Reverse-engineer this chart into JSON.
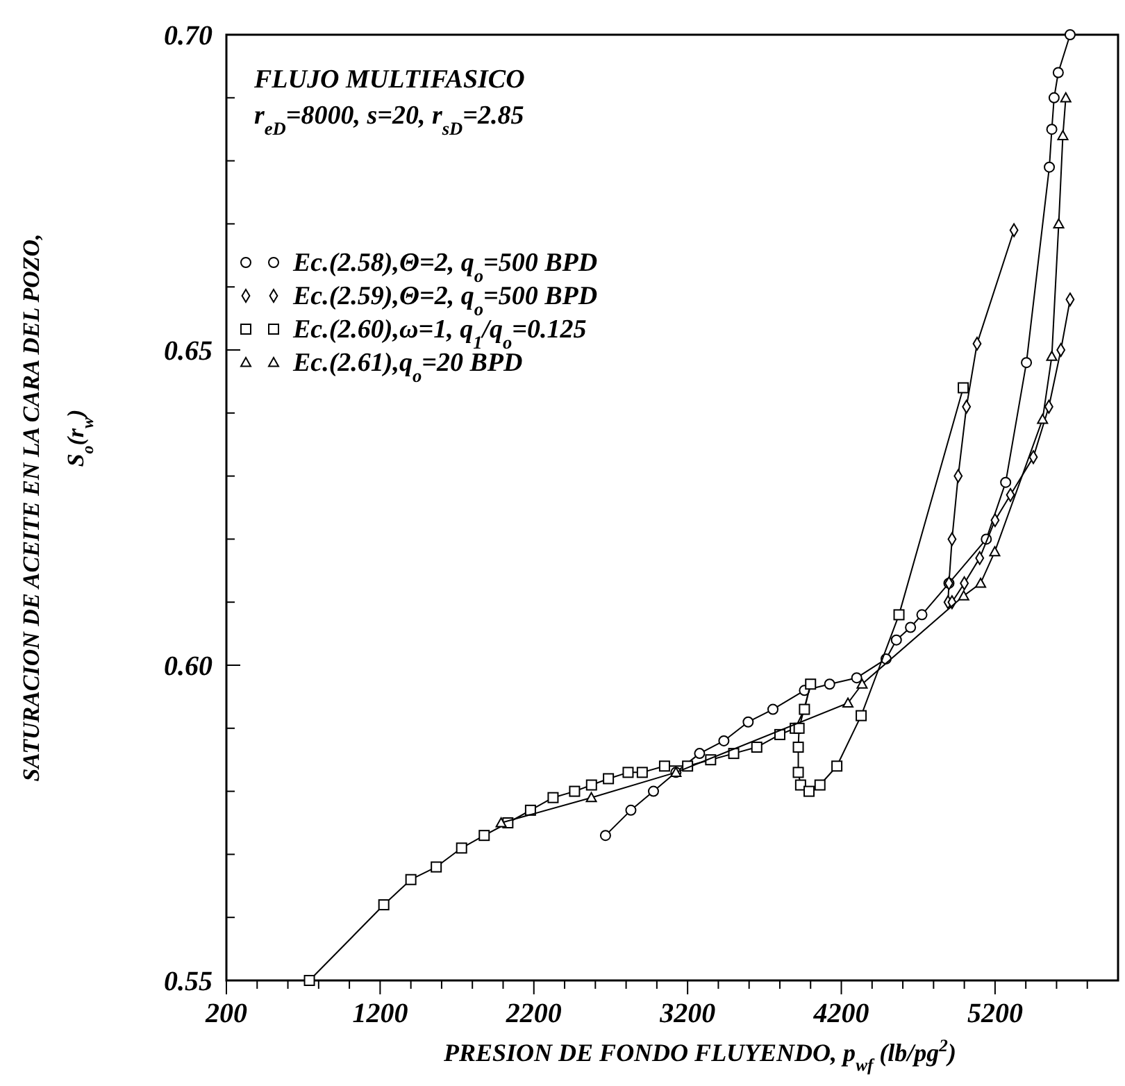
{
  "chart_data": {
    "type": "line",
    "xlabel": "PRESION DE FONDO FLUYENDO, p$_{wf}$ (lb/pg$^{2}$)",
    "ylabel": "SATURACION DE ACEITE EN LA CARA DEL POZO,\nS$_{o}$(r$_{w}$)",
    "annotations": [
      "FLUJO MULTIFASICO",
      "r$_{eD}$=8000, s=20, r$_{sD}$=2.85"
    ],
    "xlim": [
      200,
      6000
    ],
    "xticks": [
      200,
      {
        "value": 400,
        "label": null
      },
      {
        "value": 600,
        "label": null
      },
      {
        "value": 800,
        "label": null
      },
      {
        "value": 1000,
        "label": null
      },
      1200,
      {
        "value": 1400,
        "label": null
      },
      {
        "value": 1600,
        "label": null
      },
      {
        "value": 1800,
        "label": null
      },
      {
        "value": 2000,
        "label": null
      },
      2200,
      {
        "value": 2400,
        "label": null
      },
      {
        "value": 2600,
        "label": null
      },
      {
        "value": 2800,
        "label": null
      },
      {
        "value": 3000,
        "label": null
      },
      3200,
      {
        "value": 3400,
        "label": null
      },
      {
        "value": 3600,
        "label": null
      },
      {
        "value": 3800,
        "label": null
      },
      {
        "value": 4000,
        "label": null
      },
      4200,
      {
        "value": 4400,
        "label": null
      },
      {
        "value": 4600,
        "label": null
      },
      {
        "value": 4800,
        "label": null
      },
      {
        "value": 5000,
        "label": null
      },
      5200,
      {
        "value": 5400,
        "label": null
      },
      {
        "value": 5600,
        "label": null
      },
      {
        "value": 5800,
        "label": null
      }
    ],
    "ylim": [
      0.55,
      0.7
    ],
    "yticks": [
      {
        "value": 0.55,
        "label": "0.55"
      },
      {
        "value": 0.56,
        "label": null
      },
      {
        "value": 0.57,
        "label": null
      },
      {
        "value": 0.58,
        "label": null
      },
      {
        "value": 0.59,
        "label": null
      },
      {
        "value": 0.6,
        "label": "0.60"
      },
      {
        "value": 0.61,
        "label": null
      },
      {
        "value": 0.62,
        "label": null
      },
      {
        "value": 0.63,
        "label": null
      },
      {
        "value": 0.64,
        "label": null
      },
      {
        "value": 0.65,
        "label": "0.65"
      },
      {
        "value": 0.66,
        "label": null
      },
      {
        "value": 0.67,
        "label": null
      },
      {
        "value": 0.68,
        "label": null
      },
      {
        "value": 0.69,
        "label": null
      },
      {
        "value": 0.7,
        "label": "0.70"
      }
    ],
    "legend": "left",
    "grid": false,
    "line_style": "solid",
    "series": [
      {
        "name": "Ec.(2.58),Θ=2, q$_{o}$=500 BPD",
        "color": "#000000",
        "marker": "circle",
        "x": [
          2666,
          2831,
          2978,
          3124,
          3278,
          3436,
          3594,
          3755,
          3960,
          4124,
          4300,
          4491,
          4558,
          4650,
          4724,
          4900,
          5143,
          5269,
          5404,
          5553,
          5569,
          5584,
          5611,
          5688
        ],
        "values": [
          0.573,
          0.577,
          0.58,
          0.583,
          0.586,
          0.588,
          0.591,
          0.593,
          0.596,
          0.597,
          0.598,
          0.601,
          0.604,
          0.606,
          0.608,
          0.613,
          0.62,
          0.629,
          0.648,
          0.679,
          0.685,
          0.69,
          0.694,
          0.7
        ]
      },
      {
        "name": "Ec.(2.59),Θ=2, q$_{o}$=500 BPD",
        "color": "#000000",
        "marker": "diamond",
        "x": [
          5323,
          5083,
          5014,
          4960,
          4920,
          4900,
          4894,
          4920,
          5000,
          5100,
          5200,
          5300,
          5449,
          5550,
          5628,
          5688
        ],
        "values": [
          0.669,
          0.651,
          0.641,
          0.63,
          0.62,
          0.613,
          0.61,
          0.61,
          0.613,
          0.617,
          0.623,
          0.627,
          0.633,
          0.641,
          0.65,
          0.658
        ]
      },
      {
        "name": "Ec.(2.60),ω=1, q$_{1}$/q$_{o}$=0.125",
        "color": "#000000",
        "marker": "square",
        "x": [
          740,
          1224,
          1400,
          1565,
          1730,
          1877,
          2031,
          2178,
          2325,
          2465,
          2575,
          2685,
          2813,
          2905,
          3050,
          3200,
          3350,
          3500,
          3650,
          3800,
          3900,
          3960,
          4000,
          3925,
          3920,
          3920,
          3935,
          3990,
          4061,
          4171,
          4329,
          4575,
          4993
        ],
        "values": [
          0.55,
          0.562,
          0.566,
          0.568,
          0.571,
          0.573,
          0.575,
          0.577,
          0.579,
          0.58,
          0.581,
          0.582,
          0.583,
          0.583,
          0.584,
          0.584,
          0.585,
          0.586,
          0.587,
          0.589,
          0.59,
          0.593,
          0.597,
          0.59,
          0.587,
          0.583,
          0.581,
          0.58,
          0.581,
          0.584,
          0.592,
          0.608,
          0.644
        ]
      },
      {
        "name": "Ec.(2.61),q$_{o}$=20 BPD",
        "color": "#000000",
        "marker": "triangle",
        "x": [
          1987,
          2574,
          3124,
          4243,
          4335,
          4996,
          5106,
          5198,
          5509,
          5569,
          5614,
          5641,
          5660
        ],
        "values": [
          0.575,
          0.579,
          0.583,
          0.594,
          0.597,
          0.611,
          0.613,
          0.618,
          0.639,
          0.649,
          0.67,
          0.684,
          0.69
        ]
      }
    ]
  }
}
